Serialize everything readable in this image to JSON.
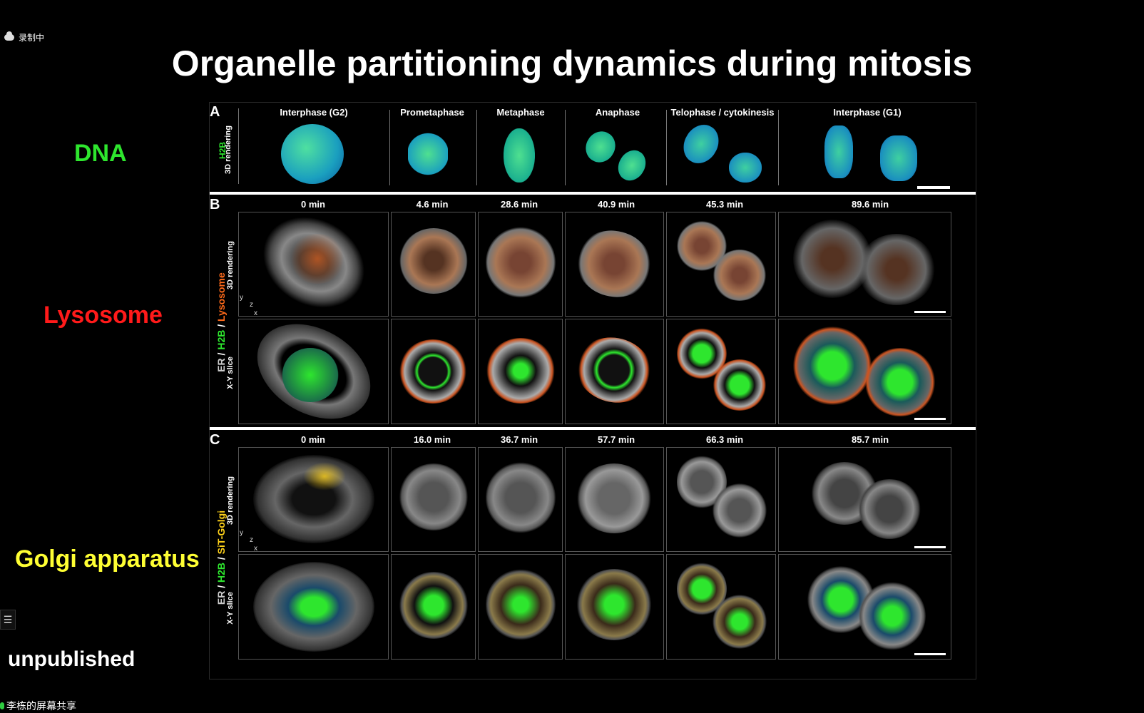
{
  "overlay": {
    "recording_label": "录制中",
    "share_label": "李栋的屏幕共享",
    "menu_icon_glyph": "☰"
  },
  "slide": {
    "title": "Organelle partitioning dynamics during mitosis",
    "side_labels": {
      "dna": "DNA",
      "lysosome": "Lysosome",
      "golgi": "Golgi apparatus",
      "unpublished": "unpublished"
    }
  },
  "figure": {
    "panel_a": {
      "letter": "A",
      "row_label_marker": "H2B",
      "row_label_mode": "3D rendering",
      "phases": [
        "Interphase (G2)",
        "Prometaphase",
        "Metaphase",
        "Anaphase",
        "Telophase / cytokinesis",
        "Interphase (G1)"
      ]
    },
    "panel_b": {
      "letter": "B",
      "marker_er": "ER",
      "marker_slash1": " / ",
      "marker_h2b": "H2B",
      "marker_slash2": " / ",
      "marker_org": "Lysosome",
      "row1_mode": "3D rendering",
      "row2_mode": "X-Y slice",
      "times": [
        "0 min",
        "4.6 min",
        "28.6 min",
        "40.9 min",
        "45.3 min",
        "89.6 min"
      ]
    },
    "panel_c": {
      "letter": "C",
      "marker_er": "ER",
      "marker_slash1": " / ",
      "marker_h2b": "H2B",
      "marker_slash2": " / ",
      "marker_org": "SiT-Golgi",
      "row1_mode": "3D rendering",
      "row2_mode": "X-Y slice",
      "times": [
        "0 min",
        "16.0 min",
        "36.7 min",
        "57.7 min",
        "66.3 min",
        "85.7 min"
      ]
    },
    "axis_letters": {
      "y": "y",
      "z": "z",
      "x": "x"
    },
    "colors": {
      "dna_green": "#2ee62e",
      "lysosome_red": "#ff1a1a",
      "golgi_yellow": "#ffff33",
      "lysosome_marker": "#ff6a1a",
      "golgi_marker": "#ffd21a",
      "er_gray": "#cccccc"
    }
  }
}
